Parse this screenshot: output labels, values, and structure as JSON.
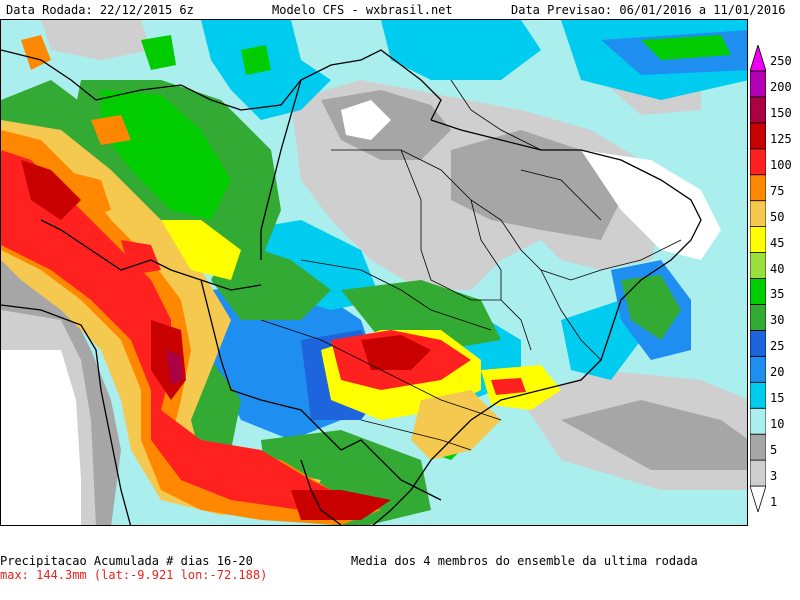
{
  "header": {
    "run_date": "Data Rodada: 22/12/2015 6z",
    "model": "Modelo CFS - wxbrasil.net",
    "forecast_date": "Data Previsao: 06/01/2016 a 11/01/2016"
  },
  "footer": {
    "variable": "Precipitacao Acumulada # dias 16-20",
    "max": "max: 144.3mm (lat:-9.921 lon:-72.188)",
    "ensemble": "Media dos 4 membros do ensemble da ultima rodada"
  },
  "colorbar": {
    "unit": "mm",
    "levels": [
      "1",
      "3",
      "5",
      "10",
      "15",
      "20",
      "25",
      "30",
      "35",
      "40",
      "45",
      "50",
      "75",
      "100",
      "125",
      "150",
      "200",
      "250"
    ],
    "colors": [
      "#ffffff",
      "#cfcfcf",
      "#a6a6a6",
      "#aaeeee",
      "#00ccf0",
      "#1e8ef0",
      "#1e64dc",
      "#33aa33",
      "#00cc00",
      "#9ae03c",
      "#ffff00",
      "#f5c850",
      "#ff8800",
      "#ff2020",
      "#c80000",
      "#ac0044",
      "#b400b4",
      "#f000f0"
    ]
  },
  "map": {
    "region": "South America - Brazil",
    "field": "accumulated precipitation"
  }
}
